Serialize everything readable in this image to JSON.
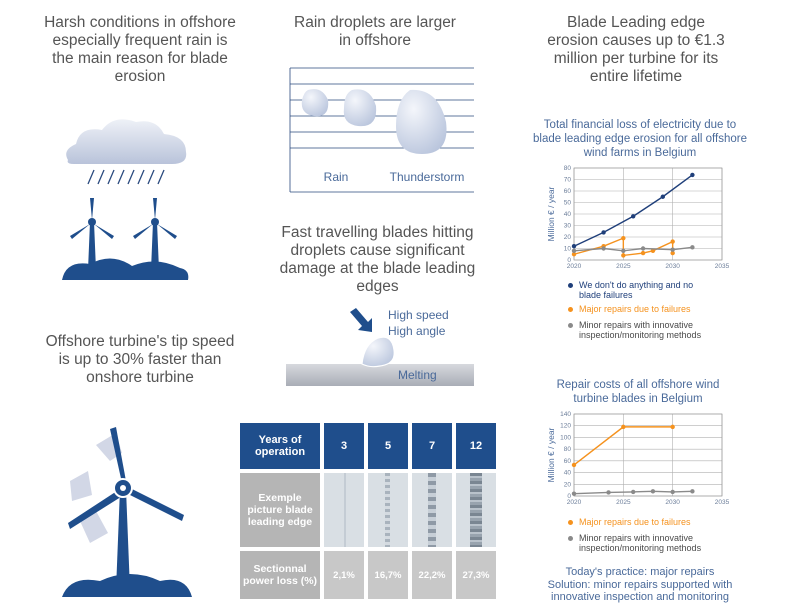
{
  "left": {
    "erosion_title": "Harsh conditions in offshore especially frequent rain is the main reason for blade erosion",
    "tip_title": "Offshore turbine's tip speed is up to 30% faster than onshore turbine"
  },
  "middle": {
    "droplets_title": "Rain droplets are larger in offshore",
    "rain_label": "Rain",
    "thunder_label": "Thunderstorm",
    "damage_title": "Fast travelling blades hitting droplets cause significant damage at the blade leading edges",
    "high_speed": "High speed",
    "high_angle": "High angle",
    "melting": "Melting"
  },
  "table": {
    "years_header": "Years of operation",
    "years": [
      "3",
      "5",
      "7",
      "12"
    ],
    "picture_header": "Exemple picture blade leading edge",
    "loss_header": "Sectionnal power loss (%)",
    "loss": [
      "2,1%",
      "16,7%",
      "22,2%",
      "27,3%"
    ]
  },
  "right": {
    "cost_title": "Blade Leading edge erosion causes up to €1.3 million per turbine for its entire lifetime",
    "chart1_title": "Total financial loss of electricity due to blade leading edge erosion for all offshore wind farms in Belgium",
    "chart2_title": "Repair costs of all offshore wind turbine blades in Belgium",
    "practice_line1": "Today's practice: major repairs",
    "practice_line2": "Solution: minor repairs supported with innovative inspection and monitoring"
  },
  "colors": {
    "navy": "#1f4e8c",
    "orange": "#f5921e",
    "grey": "#8a8a8a",
    "light_grey": "#c8c8c8",
    "text_blue": "#4a6a9a"
  },
  "chart_data": [
    {
      "type": "line",
      "ylabel": "Million € / year",
      "xlim": [
        2020,
        2035
      ],
      "ylim": [
        0,
        80
      ],
      "xticks": [
        "2020",
        "2025",
        "2030",
        "2035"
      ],
      "yticks": [
        "0",
        "10",
        "20",
        "30",
        "40",
        "50",
        "60",
        "70",
        "80"
      ],
      "grid": true,
      "legend_placement": "bottom",
      "series": [
        {
          "name": "We don't do anything and no blade failures",
          "color": "#1f3f7a",
          "x": [
            2020,
            2023,
            2026,
            2029,
            2032
          ],
          "y": [
            12,
            24,
            38,
            55,
            74
          ]
        },
        {
          "name": "Major repairs due to failures",
          "color": "#f5921e",
          "x": [
            2020,
            2023,
            2025,
            2025,
            2027,
            2028,
            2030,
            2030
          ],
          "y": [
            5,
            12,
            19,
            4,
            6,
            8,
            16,
            6
          ]
        },
        {
          "name": "Minor repairs with innovative inspection/monitoring methods",
          "color": "#8a8a8a",
          "x": [
            2020,
            2023,
            2025,
            2027,
            2030,
            2032
          ],
          "y": [
            8,
            10,
            8,
            10,
            9,
            11
          ]
        }
      ]
    },
    {
      "type": "line",
      "ylabel": "Million € / year",
      "xlim": [
        2020,
        2035
      ],
      "ylim": [
        0,
        140
      ],
      "xticks": [
        "2020",
        "2025",
        "2030",
        "2035"
      ],
      "yticks": [
        "0",
        "20",
        "40",
        "60",
        "80",
        "100",
        "120",
        "140"
      ],
      "grid": true,
      "legend_placement": "bottom",
      "series": [
        {
          "name": "Major repairs due to failures",
          "color": "#f5921e",
          "x": [
            2020,
            2025,
            2030
          ],
          "y": [
            53,
            118,
            118
          ]
        },
        {
          "name": "Minor repairs with innovative inspection/monitoring methods",
          "color": "#8a8a8a",
          "x": [
            2020,
            2023.5,
            2026,
            2028,
            2030,
            2032
          ],
          "y": [
            4,
            6,
            7,
            8,
            7,
            8
          ]
        }
      ]
    }
  ]
}
